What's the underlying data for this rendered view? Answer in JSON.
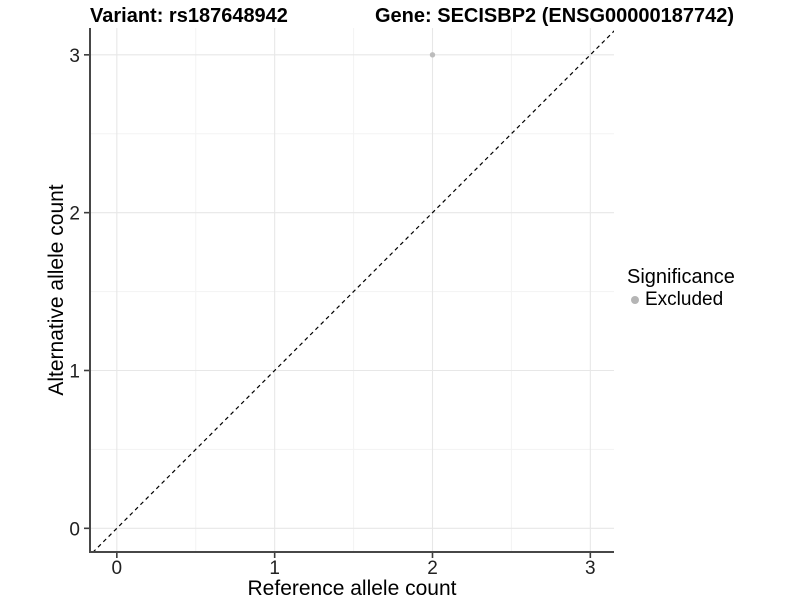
{
  "chart_data": {
    "type": "scatter",
    "titles": {
      "variant": "Variant: rs187648942",
      "gene": "Gene: SECISBP2 (ENSG00000187742)"
    },
    "xlabel": "Reference allele count",
    "ylabel": "Alternative allele count",
    "x_ticks": [
      0,
      1,
      2,
      3
    ],
    "y_ticks": [
      0,
      1,
      2,
      3
    ],
    "x_minor": [
      0.5,
      1.5,
      2.5
    ],
    "y_minor": [
      0.5,
      1.5,
      2.5
    ],
    "xlim": [
      -0.17,
      3.15
    ],
    "ylim": [
      -0.15,
      3.17
    ],
    "grid": true,
    "legend_position": "right",
    "identity_line": {
      "equation": "y = x",
      "style": "dashed",
      "color": "#000000"
    },
    "series": [
      {
        "name": "Excluded",
        "color": "#bcbcbc",
        "points": [
          {
            "x": 2,
            "y": 3
          }
        ]
      }
    ],
    "legend": {
      "title": "Significance",
      "items": [
        {
          "label": "Excluded",
          "color": "#b5b5b5"
        }
      ]
    },
    "theme": {
      "background": "#ffffff",
      "grid_major": "#e7e7e7",
      "grid_minor": "#f3f3f3",
      "axis_line": "#474747",
      "tick_color": "#3c3c3c",
      "tick_label_color": "#212121",
      "text_color": "#000000"
    }
  }
}
